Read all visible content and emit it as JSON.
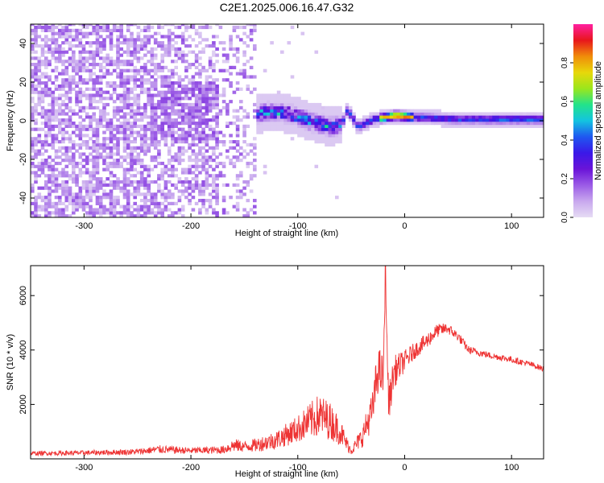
{
  "title": "C2E1.2025.006.16.47.G32",
  "colors": {
    "snr_line": "#ee3333",
    "axis": "#000000",
    "colormap": [
      "#e6dcf4",
      "#c8a8ee",
      "#9b5be6",
      "#6a14d8",
      "#3a18e8",
      "#1f57f0",
      "#13c4e0",
      "#23e38a",
      "#9be61c",
      "#e8d80a",
      "#f08c0a",
      "#e8161c",
      "#ff1fa0"
    ]
  },
  "chart_data": [
    {
      "type": "heatmap",
      "title": "C2E1.2025.006.16.47.G32",
      "xlabel": "Height of straight line (km)",
      "ylabel": "Frequency (Hz)",
      "xlim": [
        -350,
        130
      ],
      "ylim": [
        -50,
        50
      ],
      "x_ticks": [
        -300,
        -200,
        -100,
        0,
        100
      ],
      "x_tick_labels": [
        "-300",
        "-200",
        "-100",
        "0",
        "100"
      ],
      "y_ticks": [
        -40,
        -20,
        0,
        20,
        40
      ],
      "y_tick_labels": [
        "-40",
        "-20",
        "0",
        "20",
        "40"
      ],
      "colorbar": {
        "label": "Normalized spectral amplitude",
        "range": [
          0,
          1
        ],
        "ticks": [
          0,
          0.2,
          0.4,
          0.6,
          0.8
        ],
        "tick_labels": [
          "0.0",
          "0.2",
          "0.4",
          "0.6",
          "0.8"
        ]
      },
      "regions": [
        {
          "x_range": [
            -350,
            -240
          ],
          "f_spread": 50,
          "amplitude": 0.12,
          "character": "broadband noise"
        },
        {
          "x_range": [
            -240,
            -175
          ],
          "f_spread": 50,
          "amplitude": 0.09,
          "character": "broadband noise, dense near 0 Hz"
        },
        {
          "x_range": [
            -175,
            -140
          ],
          "f_spread": 50,
          "amplitude": 0.05,
          "character": "sparse noise"
        },
        {
          "x_range": [
            -140,
            -60
          ],
          "f_spread": 10,
          "amplitude": 0.45,
          "character": "signal band"
        },
        {
          "x_range": [
            -60,
            130
          ],
          "f_spread": 4,
          "amplitude": 0.7,
          "character": "narrow tone"
        }
      ],
      "centerline": [
        {
          "x": -180,
          "f": 5
        },
        {
          "x": -170,
          "f": 0
        },
        {
          "x": -150,
          "f": 1
        },
        {
          "x": -130,
          "f": 4
        },
        {
          "x": -110,
          "f": 3
        },
        {
          "x": -90,
          "f": -1
        },
        {
          "x": -70,
          "f": -4
        },
        {
          "x": -60,
          "f": -2
        },
        {
          "x": -55,
          "f": 5
        },
        {
          "x": -45,
          "f": -4
        },
        {
          "x": -30,
          "f": 0
        },
        {
          "x": -10,
          "f": 2
        },
        {
          "x": 10,
          "f": 1
        },
        {
          "x": 50,
          "f": 0
        },
        {
          "x": 130,
          "f": 0
        }
      ],
      "peak_amplitude_x": [
        -20,
        -10,
        0
      ]
    },
    {
      "type": "line",
      "xlabel": "Height of straight line (km)",
      "ylabel": "SNR (10 * v/v)",
      "xlim": [
        -350,
        130
      ],
      "ylim": [
        0,
        7100
      ],
      "x_ticks": [
        -300,
        -200,
        -100,
        0,
        100
      ],
      "x_tick_labels": [
        "-300",
        "-200",
        "-100",
        "0",
        "100"
      ],
      "y_ticks": [
        2000,
        4000,
        6000
      ],
      "y_tick_labels": [
        "2000",
        "4000",
        "6000"
      ],
      "series": [
        {
          "x": [
            -350,
            -300,
            -250,
            -230,
            -200,
            -170,
            -160,
            -150,
            -140,
            -120,
            -100,
            -80,
            -70,
            -60,
            -55,
            -50,
            -40,
            -30,
            -25,
            -20,
            -18,
            -15,
            -10,
            0,
            10,
            20,
            30,
            40,
            50,
            60,
            80,
            100,
            120,
            130
          ],
          "y": [
            200,
            220,
            260,
            350,
            300,
            330,
            500,
            450,
            500,
            700,
            1100,
            1600,
            1400,
            1000,
            600,
            300,
            800,
            1800,
            3300,
            3000,
            6500,
            2000,
            3200,
            3600,
            4000,
            4300,
            4700,
            4800,
            4500,
            4000,
            3800,
            3650,
            3450,
            3300
          ],
          "noise": [
            80,
            90,
            110,
            150,
            120,
            150,
            250,
            200,
            250,
            350,
            500,
            800,
            700,
            500,
            300,
            150,
            400,
            700,
            900,
            800,
            0,
            700,
            600,
            400,
            300,
            300,
            250,
            200,
            180,
            150,
            120,
            120,
            110,
            110
          ]
        }
      ]
    }
  ]
}
